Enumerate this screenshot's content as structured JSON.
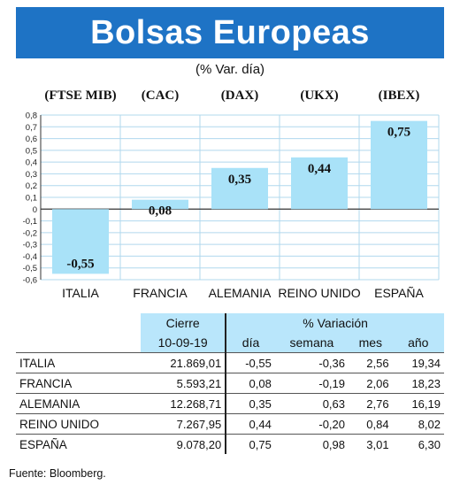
{
  "title": "Bolsas Europeas",
  "subtitle": "(% Var. día)",
  "chart_data": {
    "type": "bar",
    "index_labels": [
      "(FTSE MIB)",
      "(CAC)",
      "(DAX)",
      "(UKX)",
      "(IBEX)"
    ],
    "categories": [
      "ITALIA",
      "FRANCIA",
      "ALEMANIA",
      "REINO UNIDO",
      "ESPAÑA"
    ],
    "values": [
      -0.55,
      0.08,
      0.35,
      0.44,
      0.75
    ],
    "value_labels": [
      "-0,55",
      "0,08",
      "0,35",
      "0,44",
      "0,75"
    ],
    "ylim": [
      -0.6,
      0.8
    ],
    "yticks": [
      0.8,
      0.7,
      0.6,
      0.5,
      0.4,
      0.3,
      0.2,
      0.1,
      0,
      -0.1,
      -0.2,
      -0.3,
      -0.4,
      -0.5,
      -0.6
    ],
    "ytick_labels": [
      "0,8",
      "0,7",
      "0,6",
      "0,5",
      "0,4",
      "0,3",
      "0,2",
      "0,1",
      "0",
      "-0,1",
      "-0,2",
      "-0,3",
      "-0,4",
      "-0,5",
      "-0,6"
    ],
    "grid": true,
    "bar_color": "#a9e2f8",
    "grid_color": "#b0d8ee"
  },
  "table": {
    "header_group1": "Cierre",
    "header_group2": "% Variación",
    "date": "10-09-19",
    "col_dia": "día",
    "col_semana": "semana",
    "col_mes": "mes",
    "col_anio": "año",
    "rows": [
      {
        "name": "ITALIA",
        "cierre": "21.869,01",
        "dia": "-0,55",
        "semana": "-0,36",
        "mes": "2,56",
        "anio": "19,34"
      },
      {
        "name": "FRANCIA",
        "cierre": "5.593,21",
        "dia": "0,08",
        "semana": "-0,19",
        "mes": "2,06",
        "anio": "18,23"
      },
      {
        "name": "ALEMANIA",
        "cierre": "12.268,71",
        "dia": "0,35",
        "semana": "0,63",
        "mes": "2,76",
        "anio": "16,19"
      },
      {
        "name": "REINO UNIDO",
        "cierre": "7.267,95",
        "dia": "0,44",
        "semana": "-0,20",
        "mes": "0,84",
        "anio": "8,02"
      },
      {
        "name": "ESPAÑA",
        "cierre": "9.078,20",
        "dia": "0,75",
        "semana": "0,98",
        "mes": "3,01",
        "anio": "6,30"
      }
    ]
  },
  "source": "Fuente: Bloomberg.",
  "colors": {
    "banner": "#1e73c5",
    "header_bg": "#b9e6fb"
  }
}
